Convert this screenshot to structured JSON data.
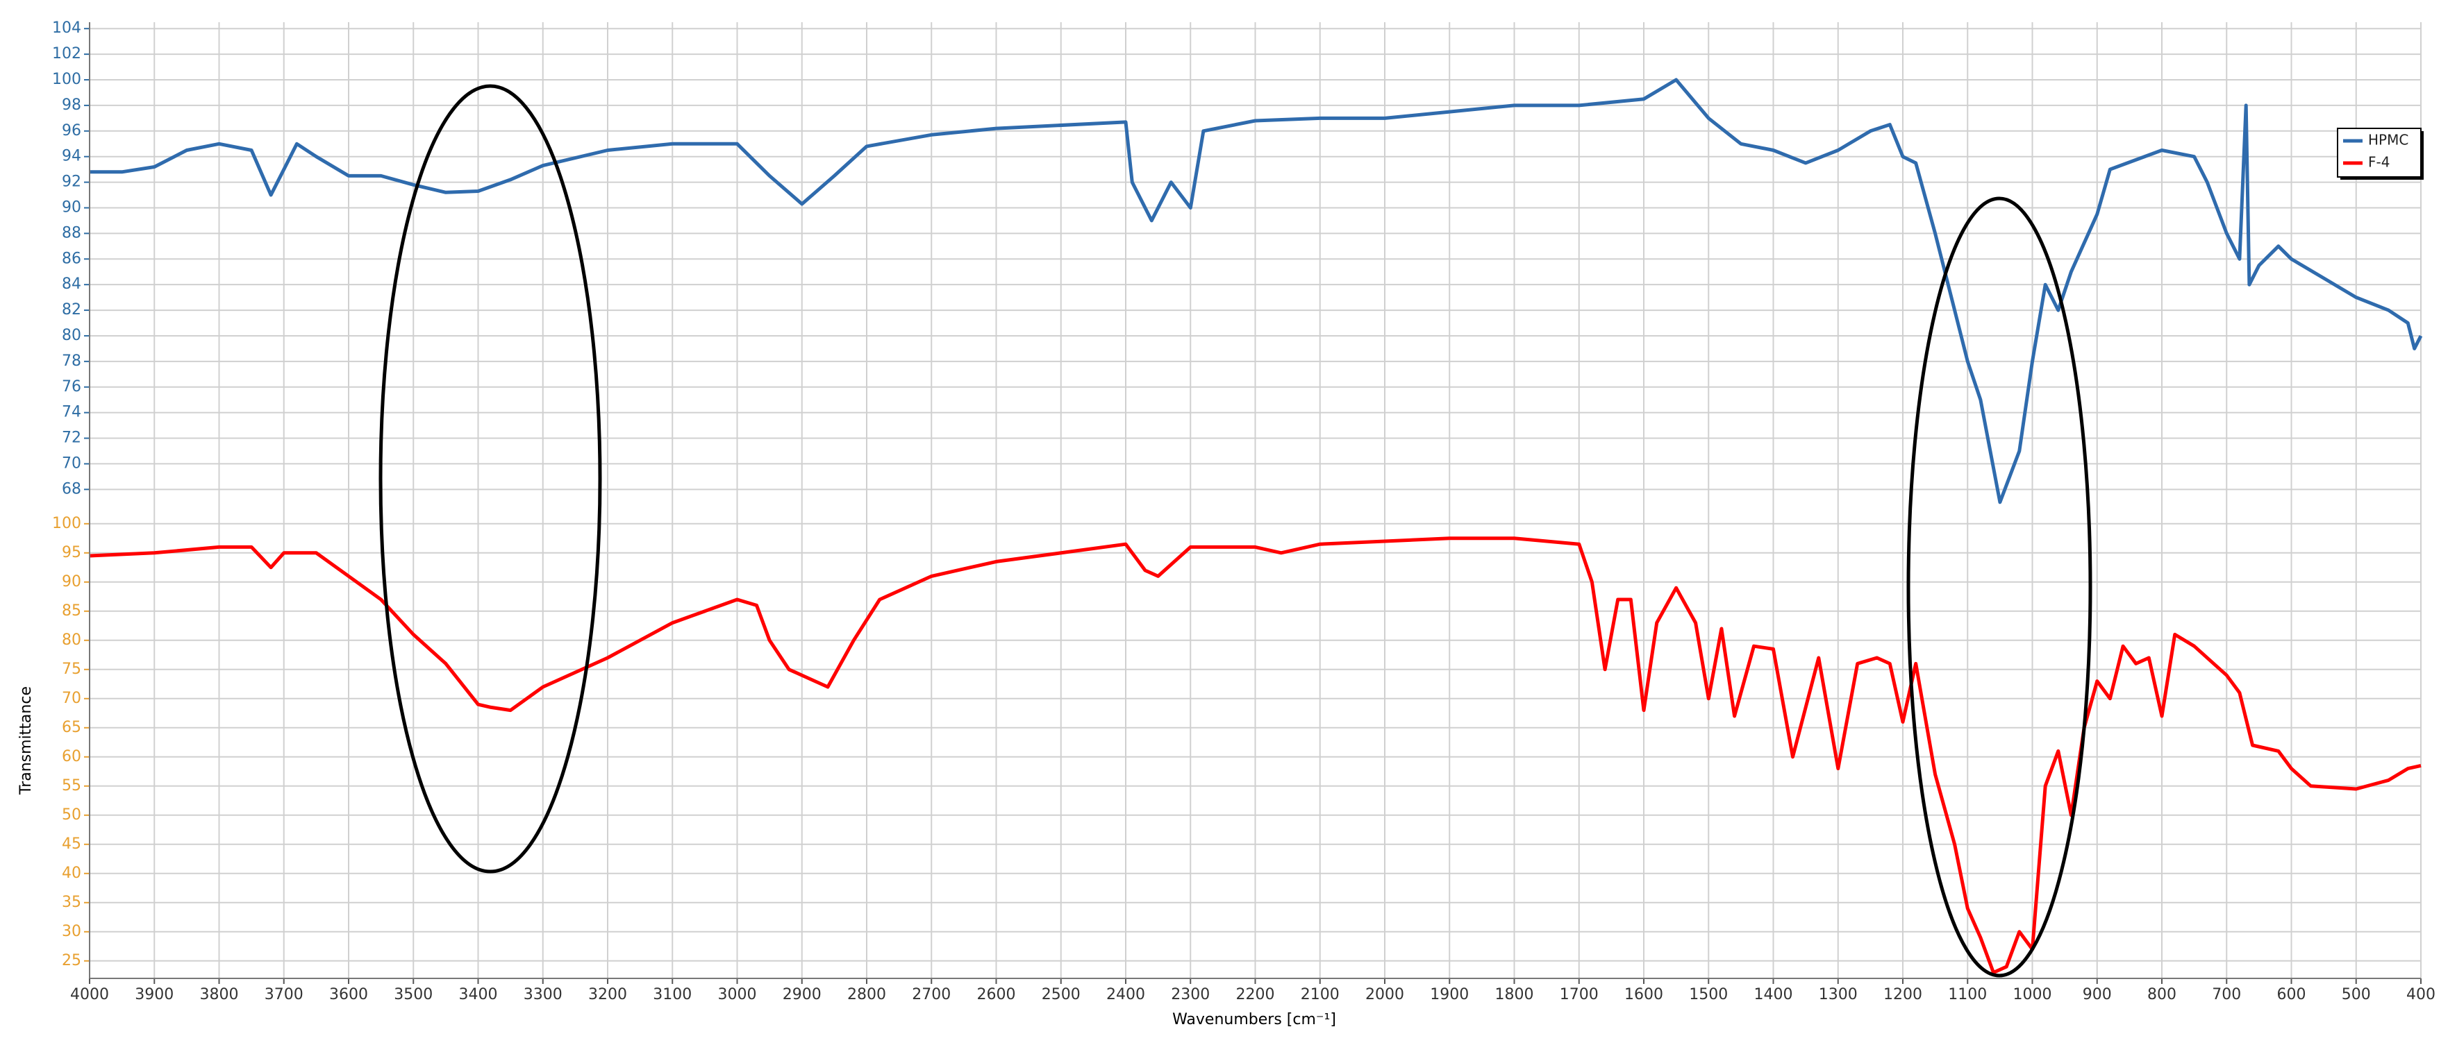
{
  "chart_data": {
    "type": "line",
    "x_label": "Wavenumbers [cm⁻¹]",
    "y_label": "Transmittance",
    "xlim": [
      4000,
      400
    ],
    "xticks": [
      4000,
      3900,
      3800,
      3700,
      3600,
      3500,
      3400,
      3300,
      3200,
      3100,
      3000,
      2900,
      2800,
      2700,
      2600,
      2500,
      2400,
      2300,
      2200,
      2100,
      2000,
      1900,
      1800,
      1700,
      1600,
      1500,
      1400,
      1300,
      1200,
      1100,
      1000,
      900,
      800,
      700,
      600,
      500,
      400
    ],
    "ylim": [
      66.5,
      104.5
    ],
    "yticks": [
      68,
      70,
      72,
      74,
      76,
      78,
      80,
      82,
      84,
      86,
      88,
      90,
      92,
      94,
      96,
      98,
      100,
      102,
      104
    ],
    "y2lim": [
      22,
      102
    ],
    "y2ticks": [
      25,
      30,
      35,
      40,
      45,
      50,
      55,
      60,
      65,
      70,
      75,
      80,
      85,
      90,
      95,
      100
    ],
    "ytick_color": "#2e6da4",
    "y2tick_color": "#e8a030",
    "grid": true,
    "legend": "top-right",
    "series": [
      {
        "name": "HPMC",
        "color": "#2f6bad",
        "axis": "y",
        "x": [
          4000,
          3950,
          3900,
          3850,
          3800,
          3750,
          3720,
          3700,
          3680,
          3650,
          3600,
          3550,
          3500,
          3450,
          3400,
          3350,
          3300,
          3200,
          3100,
          3000,
          2950,
          2900,
          2850,
          2800,
          2700,
          2600,
          2400,
          2390,
          2360,
          2330,
          2300,
          2280,
          2200,
          2100,
          2000,
          1900,
          1800,
          1700,
          1600,
          1550,
          1500,
          1450,
          1400,
          1350,
          1300,
          1250,
          1220,
          1200,
          1180,
          1150,
          1100,
          1080,
          1050,
          1020,
          1000,
          980,
          960,
          940,
          900,
          880,
          800,
          750,
          730,
          700,
          680,
          670,
          665,
          650,
          620,
          600,
          550,
          500,
          450,
          420,
          410,
          400
        ],
        "values": [
          92.8,
          92.8,
          93.2,
          94.5,
          95,
          94.5,
          91,
          93,
          95,
          94,
          92.5,
          92.5,
          91.8,
          91.2,
          91.3,
          92.2,
          93.3,
          94.5,
          95,
          95,
          92.5,
          90.3,
          92.5,
          94.8,
          95.7,
          96.2,
          96.7,
          92,
          89,
          92,
          90,
          96,
          96.8,
          97,
          97,
          97.5,
          98,
          98,
          98.5,
          100,
          97,
          95,
          94.5,
          93.5,
          94.5,
          96,
          96.5,
          94,
          93.5,
          88,
          78,
          75,
          67,
          71,
          78,
          84,
          82,
          85,
          89.5,
          93,
          94.5,
          94,
          92,
          88,
          86,
          98,
          84,
          85.5,
          87,
          86,
          84.5,
          83,
          82,
          81,
          79,
          80
        ]
      },
      {
        "name": "F-4",
        "color": "#ff0000",
        "axis": "y2",
        "x": [
          4000,
          3900,
          3800,
          3750,
          3720,
          3700,
          3650,
          3600,
          3550,
          3500,
          3450,
          3400,
          3380,
          3350,
          3300,
          3250,
          3200,
          3100,
          3000,
          2970,
          2950,
          2920,
          2880,
          2860,
          2820,
          2780,
          2700,
          2600,
          2400,
          2370,
          2350,
          2300,
          2200,
          2160,
          2100,
          2000,
          1900,
          1800,
          1700,
          1680,
          1660,
          1640,
          1620,
          1600,
          1580,
          1550,
          1520,
          1500,
          1480,
          1460,
          1430,
          1400,
          1370,
          1330,
          1300,
          1270,
          1240,
          1220,
          1200,
          1180,
          1150,
          1120,
          1100,
          1080,
          1060,
          1040,
          1020,
          1000,
          980,
          960,
          940,
          920,
          900,
          880,
          860,
          840,
          820,
          800,
          780,
          750,
          700,
          680,
          660,
          620,
          600,
          570,
          500,
          450,
          420,
          400
        ],
        "values": [
          94.5,
          95,
          96,
          96,
          92.5,
          95,
          95,
          91,
          87,
          81,
          76,
          69,
          68.5,
          68,
          72,
          74.5,
          77,
          83,
          87,
          86,
          80,
          75,
          73,
          72,
          80,
          87,
          91,
          93.5,
          96.5,
          92,
          91,
          96,
          96,
          95,
          96.5,
          97,
          97.5,
          97.5,
          96.5,
          90,
          75,
          87,
          87,
          68,
          83,
          89,
          83,
          70,
          82,
          67,
          79,
          78.5,
          60,
          77,
          58,
          76,
          77,
          76,
          66,
          76,
          57,
          45,
          34,
          29,
          23,
          24,
          30,
          27,
          55,
          61,
          50,
          65,
          73,
          70,
          79,
          76,
          77,
          67,
          81,
          79,
          74,
          71,
          62,
          61,
          58,
          55,
          54.5,
          56,
          58,
          58.5
        ]
      }
    ]
  }
}
